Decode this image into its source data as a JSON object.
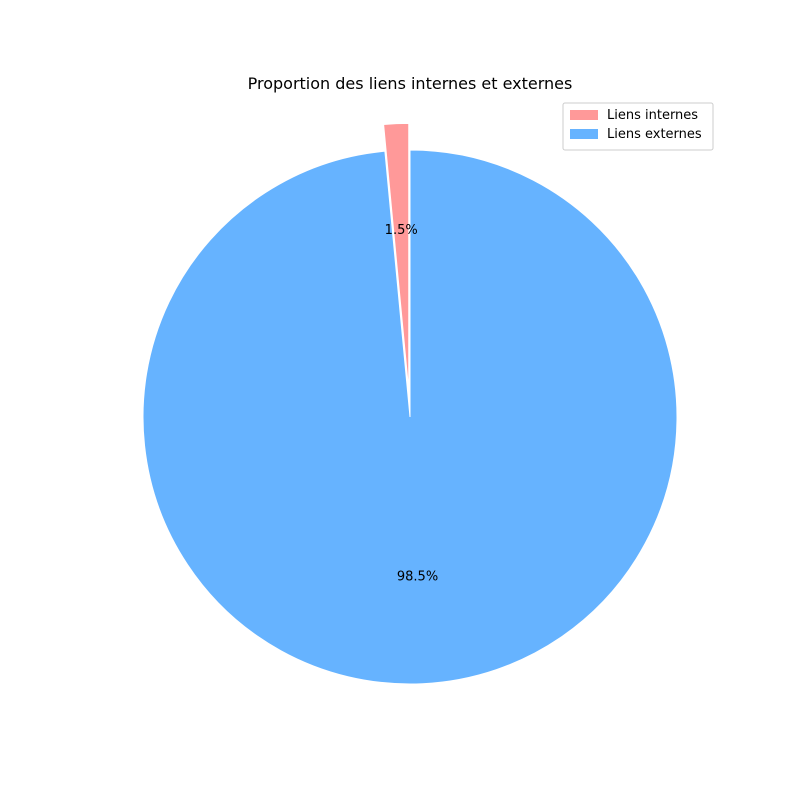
{
  "chart_data": {
    "type": "pie",
    "title": "Proportion des liens internes et externes",
    "categories": [
      "Liens internes",
      "Liens externes"
    ],
    "values": [
      1.5,
      98.5
    ],
    "value_labels": [
      "1.5%",
      "98.5%"
    ],
    "colors": [
      "#ff9999",
      "#66b3ff"
    ],
    "explode": [
      0.1,
      0
    ],
    "start_angle_deg": 90,
    "direction": "counterclockwise",
    "legend": {
      "placement": "top-right",
      "entries": [
        "Liens internes",
        "Liens externes"
      ]
    }
  }
}
